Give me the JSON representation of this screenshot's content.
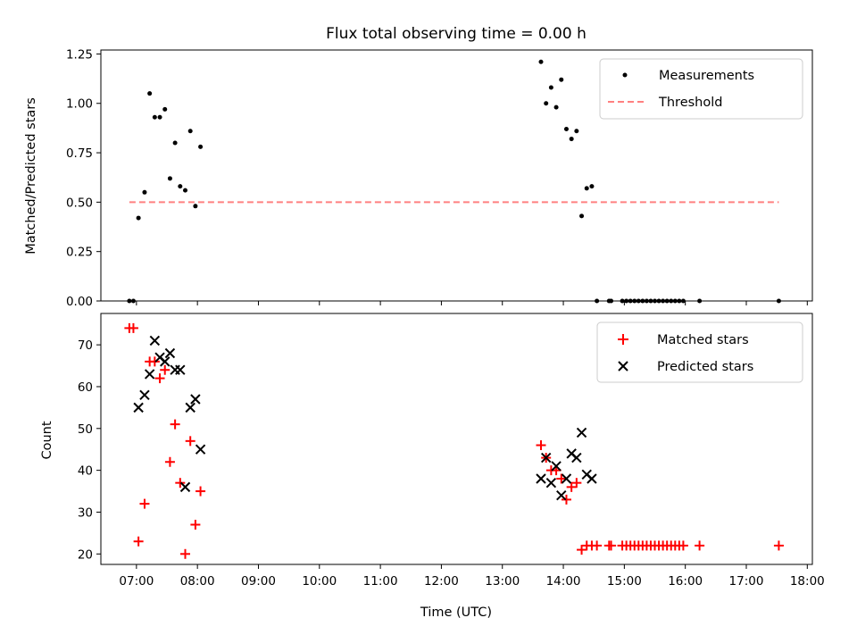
{
  "chart_data": [
    {
      "type": "scatter",
      "title": "Flux total observing time = 0.00 h",
      "xlabel": "",
      "ylabel": "Matched/Predicted stars",
      "xlim": [
        "06:25",
        "18:05"
      ],
      "ylim": [
        0,
        1.27
      ],
      "yticks": [
        "0.00",
        "0.25",
        "0.50",
        "0.75",
        "1.00",
        "1.25"
      ],
      "legend": "top-right",
      "series": [
        {
          "name": "Measurements",
          "marker": "dot",
          "color": "#000000",
          "points": [
            [
              "06:53",
              0
            ],
            [
              "06:57",
              0
            ],
            [
              "07:02",
              0.42
            ],
            [
              "07:08",
              0.55
            ],
            [
              "07:13",
              1.05
            ],
            [
              "07:18",
              0.93
            ],
            [
              "07:23",
              0.93
            ],
            [
              "07:28",
              0.97
            ],
            [
              "07:33",
              0.62
            ],
            [
              "07:38",
              0.8
            ],
            [
              "07:43",
              0.58
            ],
            [
              "07:48",
              0.56
            ],
            [
              "07:53",
              0.86
            ],
            [
              "07:58",
              0.48
            ],
            [
              "08:03",
              0.78
            ],
            [
              "13:38",
              1.21
            ],
            [
              "13:43",
              1.0
            ],
            [
              "13:48",
              1.08
            ],
            [
              "13:53",
              0.98
            ],
            [
              "13:58",
              1.12
            ],
            [
              "14:03",
              0.87
            ],
            [
              "14:08",
              0.82
            ],
            [
              "14:13",
              0.86
            ],
            [
              "14:18",
              0.43
            ],
            [
              "14:23",
              0.57
            ],
            [
              "14:28",
              0.58
            ],
            [
              "14:33",
              0
            ],
            [
              "14:45",
              0
            ],
            [
              "14:47",
              0
            ],
            [
              "14:58",
              0
            ],
            [
              "15:02",
              0
            ],
            [
              "15:06",
              0
            ],
            [
              "15:10",
              0
            ],
            [
              "15:14",
              0
            ],
            [
              "15:18",
              0
            ],
            [
              "15:22",
              0
            ],
            [
              "15:26",
              0
            ],
            [
              "15:30",
              0
            ],
            [
              "15:34",
              0
            ],
            [
              "15:38",
              0
            ],
            [
              "15:42",
              0
            ],
            [
              "15:46",
              0
            ],
            [
              "15:50",
              0
            ],
            [
              "15:54",
              0
            ],
            [
              "15:58",
              0
            ],
            [
              "16:14",
              0
            ],
            [
              "17:32",
              0
            ]
          ]
        },
        {
          "name": "Threshold",
          "marker": "dashed-line",
          "color": "#ff8080",
          "points": [
            [
              "06:53",
              0.5
            ],
            [
              "17:32",
              0.5
            ]
          ]
        }
      ]
    },
    {
      "type": "scatter",
      "title": "",
      "xlabel": "Time (UTC)",
      "ylabel": "Count",
      "xlim": [
        "06:25",
        "18:05"
      ],
      "ylim": [
        17.5,
        77.5
      ],
      "xticks": [
        "07:00",
        "08:00",
        "09:00",
        "10:00",
        "11:00",
        "12:00",
        "13:00",
        "14:00",
        "15:00",
        "16:00",
        "17:00",
        "18:00"
      ],
      "yticks": [
        "20",
        "30",
        "40",
        "50",
        "60",
        "70"
      ],
      "legend": "top-right",
      "series": [
        {
          "name": "Matched stars",
          "marker": "plus",
          "color": "#ff0000",
          "points": [
            [
              "06:53",
              74
            ],
            [
              "06:57",
              74
            ],
            [
              "07:02",
              23
            ],
            [
              "07:08",
              32
            ],
            [
              "07:13",
              66
            ],
            [
              "07:18",
              66
            ],
            [
              "07:23",
              62
            ],
            [
              "07:28",
              64
            ],
            [
              "07:33",
              42
            ],
            [
              "07:38",
              51
            ],
            [
              "07:43",
              37
            ],
            [
              "07:48",
              20
            ],
            [
              "07:53",
              47
            ],
            [
              "07:58",
              27
            ],
            [
              "08:03",
              35
            ],
            [
              "13:38",
              46
            ],
            [
              "13:43",
              43
            ],
            [
              "13:48",
              40
            ],
            [
              "13:53",
              40
            ],
            [
              "13:58",
              38
            ],
            [
              "14:03",
              33
            ],
            [
              "14:08",
              36
            ],
            [
              "14:13",
              37
            ],
            [
              "14:18",
              21
            ],
            [
              "14:23",
              22
            ],
            [
              "14:28",
              22
            ],
            [
              "14:33",
              22
            ],
            [
              "14:45",
              22
            ],
            [
              "14:47",
              22
            ],
            [
              "14:58",
              22
            ],
            [
              "15:02",
              22
            ],
            [
              "15:06",
              22
            ],
            [
              "15:10",
              22
            ],
            [
              "15:14",
              22
            ],
            [
              "15:18",
              22
            ],
            [
              "15:22",
              22
            ],
            [
              "15:26",
              22
            ],
            [
              "15:30",
              22
            ],
            [
              "15:34",
              22
            ],
            [
              "15:38",
              22
            ],
            [
              "15:42",
              22
            ],
            [
              "15:46",
              22
            ],
            [
              "15:50",
              22
            ],
            [
              "15:54",
              22
            ],
            [
              "15:58",
              22
            ],
            [
              "16:14",
              22
            ],
            [
              "17:32",
              22
            ]
          ]
        },
        {
          "name": "Predicted stars",
          "marker": "x",
          "color": "#000000",
          "points": [
            [
              "07:02",
              55
            ],
            [
              "07:08",
              58
            ],
            [
              "07:13",
              63
            ],
            [
              "07:18",
              71
            ],
            [
              "07:23",
              67
            ],
            [
              "07:28",
              66
            ],
            [
              "07:33",
              68
            ],
            [
              "07:38",
              64
            ],
            [
              "07:43",
              64
            ],
            [
              "07:48",
              36
            ],
            [
              "07:53",
              55
            ],
            [
              "07:58",
              57
            ],
            [
              "08:03",
              45
            ],
            [
              "13:38",
              38
            ],
            [
              "13:43",
              43
            ],
            [
              "13:48",
              37
            ],
            [
              "13:53",
              41
            ],
            [
              "13:58",
              34
            ],
            [
              "14:03",
              38
            ],
            [
              "14:08",
              44
            ],
            [
              "14:13",
              43
            ],
            [
              "14:18",
              49
            ],
            [
              "14:23",
              39
            ],
            [
              "14:28",
              38
            ]
          ]
        }
      ]
    }
  ]
}
